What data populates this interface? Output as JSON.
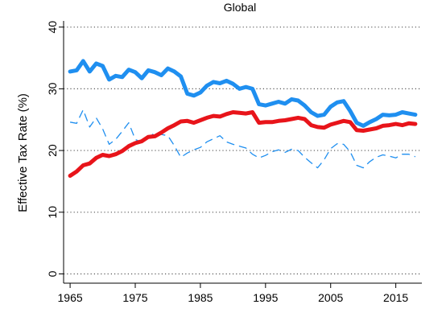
{
  "chart_data": {
    "type": "line",
    "title": "Global",
    "xlabel": "",
    "ylabel": "Effective Tax Rate (%)",
    "xlim": [
      1964,
      2019
    ],
    "ylim": [
      -1.5,
      41
    ],
    "xticks": [
      1965,
      1975,
      1985,
      1995,
      2005,
      2015
    ],
    "yticks": [
      0,
      10,
      20,
      30,
      40
    ],
    "grid": true,
    "legend": "none",
    "x": [
      1965,
      1966,
      1967,
      1968,
      1969,
      1970,
      1971,
      1972,
      1973,
      1974,
      1975,
      1976,
      1977,
      1978,
      1979,
      1980,
      1981,
      1982,
      1983,
      1984,
      1985,
      1986,
      1987,
      1988,
      1989,
      1990,
      1991,
      1992,
      1993,
      1994,
      1995,
      1996,
      1997,
      1998,
      1999,
      2000,
      2001,
      2002,
      2003,
      2004,
      2005,
      2006,
      2007,
      2008,
      2009,
      2010,
      2011,
      2012,
      2013,
      2014,
      2015,
      2016,
      2017,
      2018
    ],
    "series": [
      {
        "color": "#1f8ff0",
        "style": "solid-thick",
        "values": [
          32.8,
          33.0,
          34.5,
          32.8,
          34.1,
          33.7,
          31.5,
          32.1,
          31.9,
          33.1,
          32.7,
          31.7,
          33.0,
          32.7,
          32.2,
          33.3,
          32.8,
          32.0,
          29.2,
          28.9,
          29.4,
          30.5,
          31.1,
          30.9,
          31.3,
          30.8,
          30.0,
          30.3,
          30.0,
          27.5,
          27.3,
          27.6,
          27.9,
          27.6,
          28.3,
          28.1,
          27.3,
          26.2,
          25.6,
          25.8,
          27.1,
          27.8,
          28.0,
          26.4,
          24.5,
          24.0,
          24.6,
          25.1,
          25.8,
          25.7,
          25.8,
          26.2,
          26.0,
          25.8
        ]
      },
      {
        "color": "#e8141a",
        "style": "solid-thick",
        "values": [
          15.9,
          16.6,
          17.6,
          17.9,
          18.8,
          19.3,
          19.1,
          19.4,
          19.9,
          20.7,
          21.2,
          21.5,
          22.2,
          22.3,
          22.9,
          23.6,
          24.1,
          24.7,
          24.8,
          24.5,
          24.9,
          25.3,
          25.6,
          25.5,
          25.9,
          26.2,
          26.1,
          26.0,
          26.2,
          24.5,
          24.6,
          24.6,
          24.8,
          24.9,
          25.1,
          25.3,
          25.1,
          24.1,
          23.8,
          23.7,
          24.2,
          24.5,
          24.8,
          24.6,
          23.3,
          23.2,
          23.4,
          23.6,
          24.0,
          24.1,
          24.3,
          24.1,
          24.4,
          24.3
        ]
      },
      {
        "color": "#1f8ff0",
        "style": "dashed-thin",
        "values": [
          24.6,
          24.4,
          26.6,
          23.8,
          25.3,
          23.5,
          21.0,
          21.8,
          23.1,
          24.5,
          21.8,
          21.3,
          22.0,
          22.9,
          22.6,
          22.4,
          20.8,
          18.9,
          19.6,
          20.1,
          20.5,
          21.4,
          21.9,
          22.4,
          21.4,
          21.0,
          20.7,
          20.4,
          19.4,
          18.8,
          19.2,
          19.8,
          20.1,
          19.7,
          20.2,
          20.0,
          18.9,
          18.0,
          17.2,
          18.5,
          20.3,
          21.1,
          21.0,
          19.8,
          17.6,
          17.2,
          18.2,
          18.9,
          19.3,
          19.1,
          18.8,
          19.4,
          19.4,
          19.0
        ]
      }
    ]
  }
}
